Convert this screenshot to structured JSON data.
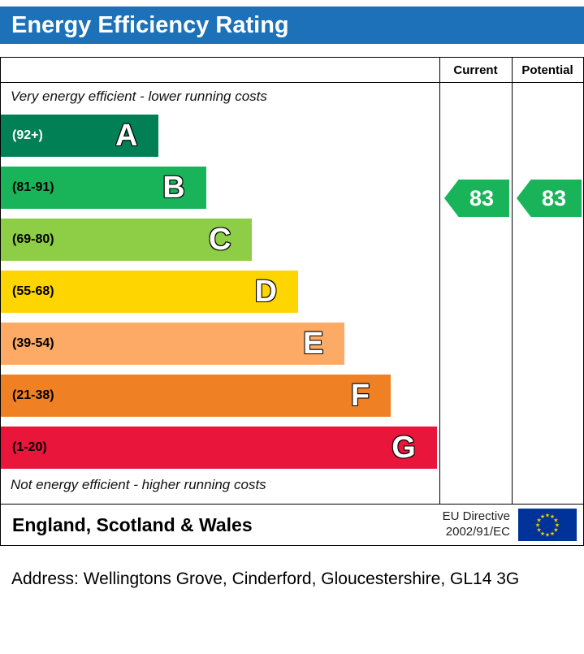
{
  "header": {
    "title": "Energy Efficiency Rating",
    "bg_color": "#1d71b8"
  },
  "table": {
    "columns": {
      "current": "Current",
      "potential": "Potential"
    },
    "top_note": "Very energy efficient - lower running costs",
    "bottom_note": "Not energy efficient - higher running costs"
  },
  "chart_data": {
    "type": "bar",
    "title": "Energy Efficiency Rating",
    "bands": [
      {
        "letter": "A",
        "range": "(92+)",
        "color": "#008054",
        "width_pct": 36,
        "range_color": "#ffffff"
      },
      {
        "letter": "B",
        "range": "(81-91)",
        "color": "#19b459",
        "width_pct": 46.8,
        "range_color": "#000000"
      },
      {
        "letter": "C",
        "range": "(69-80)",
        "color": "#8dce46",
        "width_pct": 57.3,
        "range_color": "#000000"
      },
      {
        "letter": "D",
        "range": "(55-68)",
        "color": "#ffd500",
        "width_pct": 67.8,
        "range_color": "#000000"
      },
      {
        "letter": "E",
        "range": "(39-54)",
        "color": "#fcaa65",
        "width_pct": 78.4,
        "range_color": "#000000"
      },
      {
        "letter": "F",
        "range": "(21-38)",
        "color": "#ef8023",
        "width_pct": 88.9,
        "range_color": "#000000"
      },
      {
        "letter": "G",
        "range": "(1-20)",
        "color": "#e9153b",
        "width_pct": 99.4,
        "range_color": "#000000"
      }
    ],
    "current": {
      "value": 83,
      "band": "B",
      "color": "#19b459"
    },
    "potential": {
      "value": 83,
      "band": "B",
      "color": "#19b459"
    }
  },
  "footer": {
    "region": "England, Scotland & Wales",
    "directive_line1": "EU Directive",
    "directive_line2": "2002/91/EC",
    "flag_colors": {
      "bg": "#003399",
      "stars": "#ffcc00"
    }
  },
  "address_line": "Address: Wellingtons Grove, Cinderford, Gloucestershire, GL14 3G"
}
